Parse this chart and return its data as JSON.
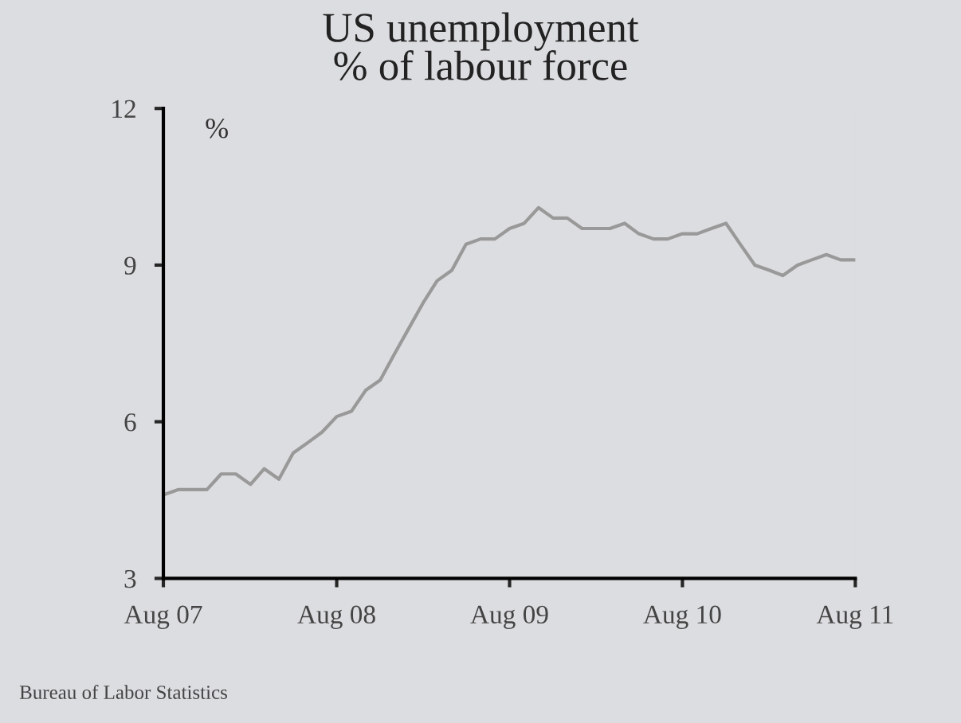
{
  "chart_data": {
    "type": "line",
    "title": "US unemployment\n% of labour force",
    "ylabel": "%",
    "x": [
      "2007-08",
      "2007-09",
      "2007-10",
      "2007-11",
      "2007-12",
      "2008-01",
      "2008-02",
      "2008-03",
      "2008-04",
      "2008-05",
      "2008-06",
      "2008-07",
      "2008-08",
      "2008-09",
      "2008-10",
      "2008-11",
      "2008-12",
      "2009-01",
      "2009-02",
      "2009-03",
      "2009-04",
      "2009-05",
      "2009-06",
      "2009-07",
      "2009-08",
      "2009-09",
      "2009-10",
      "2009-11",
      "2009-12",
      "2010-01",
      "2010-02",
      "2010-03",
      "2010-04",
      "2010-05",
      "2010-06",
      "2010-07",
      "2010-08",
      "2010-09",
      "2010-10",
      "2010-11",
      "2010-12",
      "2011-01",
      "2011-02",
      "2011-03",
      "2011-04",
      "2011-05",
      "2011-06",
      "2011-07",
      "2011-08"
    ],
    "series": [
      {
        "color": "#999999",
        "values": [
          4.6,
          4.7,
          4.7,
          4.7,
          5.0,
          5.0,
          4.8,
          5.1,
          4.9,
          5.4,
          5.6,
          5.8,
          6.1,
          6.2,
          6.6,
          6.8,
          7.3,
          7.8,
          8.3,
          8.7,
          8.9,
          9.4,
          9.5,
          9.5,
          9.7,
          9.8,
          10.1,
          9.9,
          9.9,
          9.7,
          9.7,
          9.7,
          9.8,
          9.6,
          9.5,
          9.5,
          9.6,
          9.6,
          9.7,
          9.8,
          9.4,
          9.0,
          8.9,
          8.8,
          9.0,
          9.1,
          9.2,
          9.1,
          9.1
        ]
      }
    ],
    "xlim": [
      "2007-08",
      "2011-08"
    ],
    "xticks": [
      {
        "value": "2007-08",
        "label": "Aug 07"
      },
      {
        "value": "2008-08",
        "label": "Aug 08"
      },
      {
        "value": "2009-08",
        "label": "Aug 09"
      },
      {
        "value": "2010-08",
        "label": "Aug 10"
      },
      {
        "value": "2011-08",
        "label": "Aug 11"
      }
    ],
    "ylim": [
      3,
      12
    ],
    "yticks": [
      3,
      6,
      9,
      12
    ],
    "grid": false,
    "legend": false,
    "marker": "none",
    "line_style": "solid",
    "annotations": [
      "Bureau of Labor Statistics"
    ]
  }
}
